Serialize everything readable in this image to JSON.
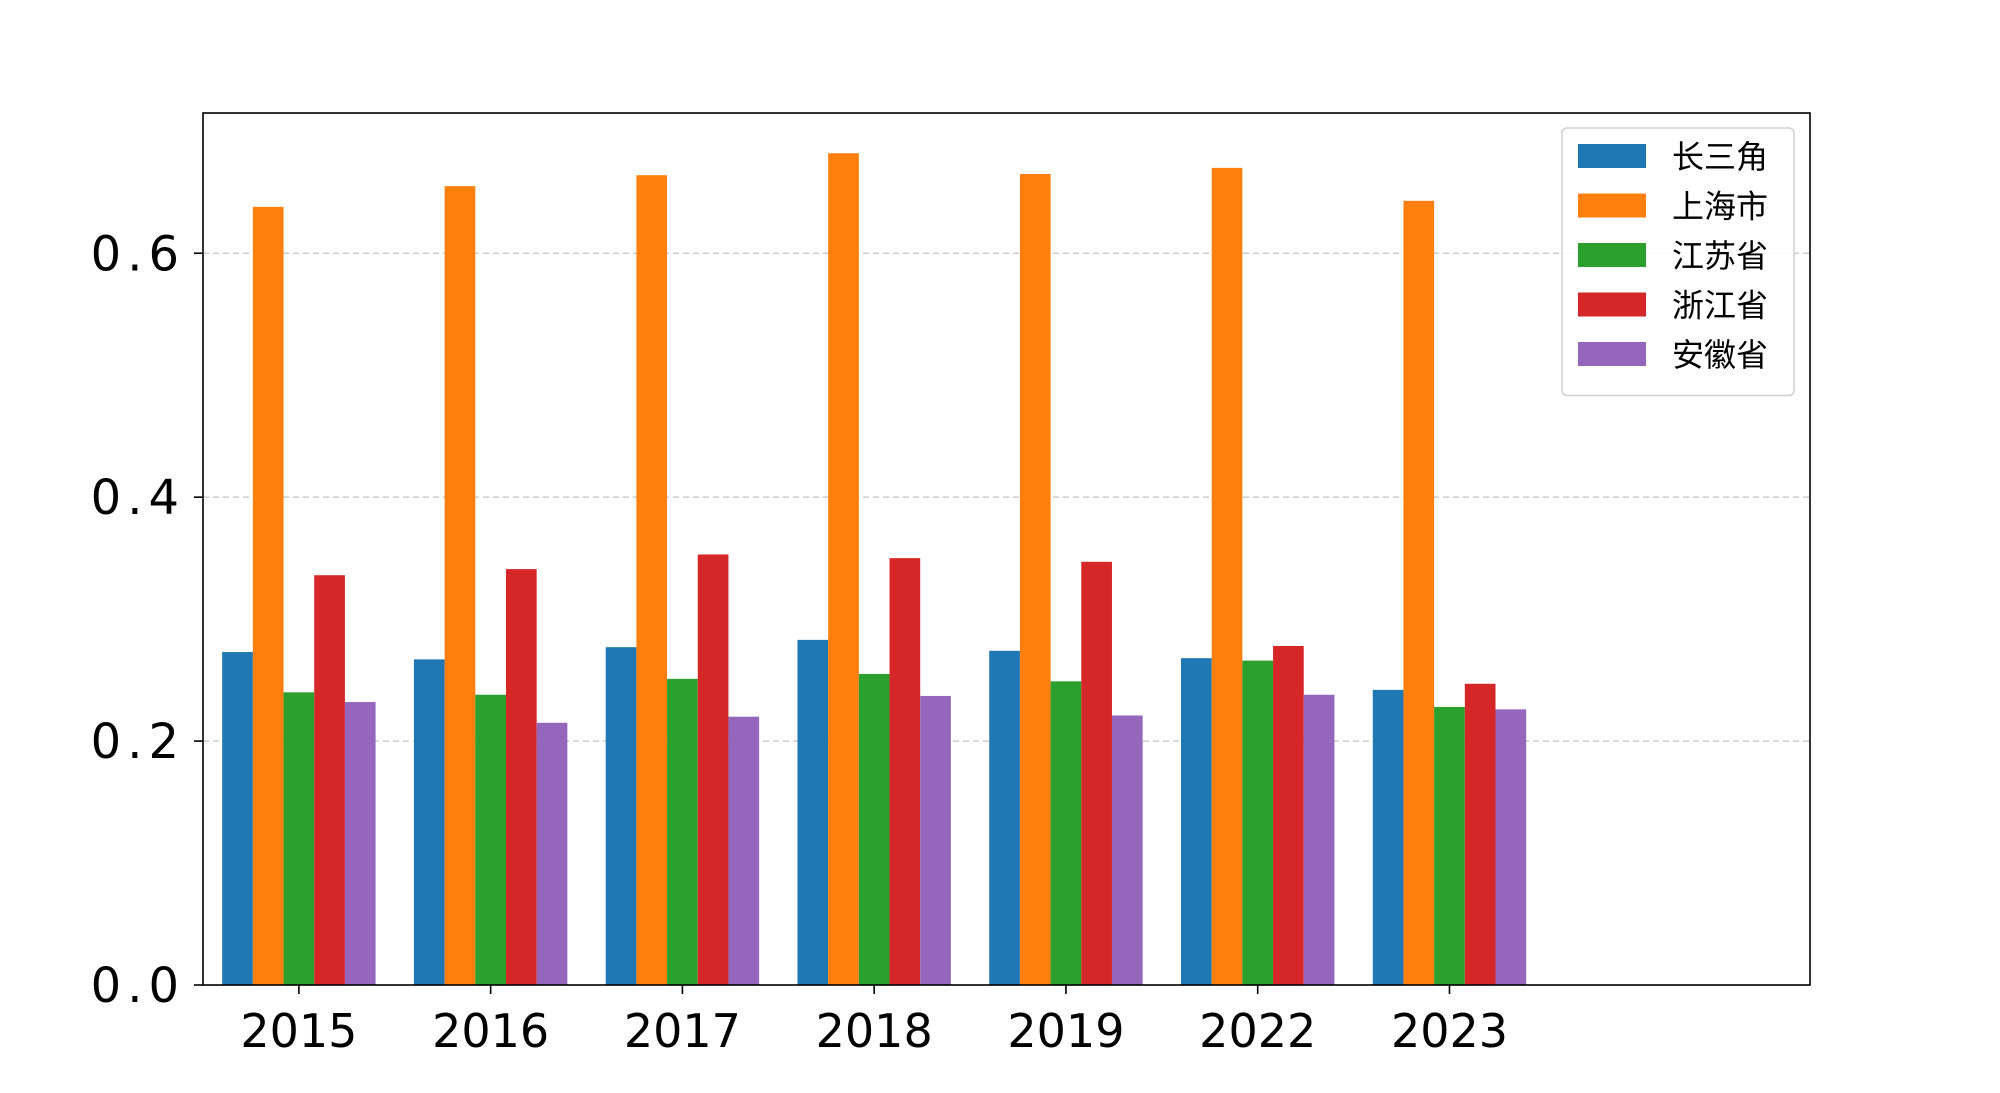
{
  "chart_data": {
    "type": "bar",
    "title": "",
    "xlabel": "",
    "ylabel": "",
    "categories": [
      "2015",
      "2016",
      "2017",
      "2018",
      "2019",
      "2022",
      "2023"
    ],
    "ylim": [
      0,
      0.715
    ],
    "yticks": [
      0.0,
      0.2,
      0.4,
      0.6
    ],
    "ytick_labels": [
      "0.0",
      "0.2",
      "0.4",
      "0.6"
    ],
    "grid": {
      "axis": "y",
      "style": "dashed",
      "color": "#cccccc"
    },
    "legend_position": "top-right",
    "series": [
      {
        "name": "长三角",
        "color": "#1f77b4",
        "values": [
          0.273,
          0.267,
          0.277,
          0.283,
          0.274,
          0.268,
          0.242
        ]
      },
      {
        "name": "上海市",
        "color": "#ff7f0e",
        "values": [
          0.638,
          0.655,
          0.664,
          0.682,
          0.665,
          0.67,
          0.643
        ]
      },
      {
        "name": "江苏省",
        "color": "#2ca02c",
        "values": [
          0.24,
          0.238,
          0.251,
          0.255,
          0.249,
          0.266,
          0.228
        ]
      },
      {
        "name": "浙江省",
        "color": "#d62728",
        "values": [
          0.336,
          0.341,
          0.353,
          0.35,
          0.347,
          0.278,
          0.247
        ]
      },
      {
        "name": "安徽省",
        "color": "#9467bd",
        "values": [
          0.232,
          0.215,
          0.22,
          0.237,
          0.221,
          0.238,
          0.226
        ]
      }
    ]
  }
}
